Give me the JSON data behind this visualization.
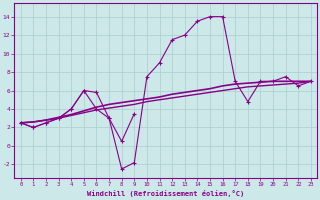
{
  "xlabel": "Windchill (Refroidissement éolien,°C)",
  "background_color": "#cce8e8",
  "grid_color": "#aacece",
  "line_color": "#880088",
  "x_values": [
    0,
    1,
    2,
    3,
    4,
    5,
    6,
    7,
    8,
    9,
    10,
    11,
    12,
    13,
    14,
    15,
    16,
    17,
    18,
    19,
    20,
    21,
    22,
    23
  ],
  "line1_y": [
    2.5,
    2.0,
    2.5,
    3.0,
    4.0,
    6.0,
    4.0,
    3.0,
    -2.5,
    -1.8,
    7.5,
    9.0,
    11.5,
    12.0,
    13.5,
    14.0,
    14.0,
    7.0,
    4.8,
    7.0,
    7.0,
    7.5,
    6.5,
    7.0
  ],
  "line2_x": [
    0,
    1,
    2,
    3,
    4,
    5,
    6,
    7,
    8,
    9
  ],
  "line2_y": [
    2.5,
    2.0,
    2.5,
    3.0,
    4.0,
    6.0,
    5.8,
    3.0,
    0.5,
    3.5
  ],
  "line3_y": [
    2.5,
    2.6,
    2.8,
    3.0,
    3.3,
    3.6,
    3.9,
    4.1,
    4.3,
    4.5,
    4.8,
    5.0,
    5.2,
    5.4,
    5.6,
    5.8,
    6.0,
    6.2,
    6.4,
    6.5,
    6.6,
    6.7,
    6.8,
    7.0
  ],
  "line4_y": [
    2.5,
    2.6,
    2.8,
    3.1,
    3.4,
    3.8,
    4.2,
    4.5,
    4.7,
    4.9,
    5.1,
    5.3,
    5.6,
    5.8,
    6.0,
    6.2,
    6.5,
    6.7,
    6.8,
    6.9,
    7.0,
    7.0,
    7.0,
    7.0
  ],
  "ylim": [
    -3.5,
    15.5
  ],
  "xlim": [
    -0.5,
    23.5
  ],
  "yticks": [
    -2,
    0,
    2,
    4,
    6,
    8,
    10,
    12,
    14
  ],
  "xticks": [
    0,
    1,
    2,
    3,
    4,
    5,
    6,
    7,
    8,
    9,
    10,
    11,
    12,
    13,
    14,
    15,
    16,
    17,
    18,
    19,
    20,
    21,
    22,
    23
  ]
}
